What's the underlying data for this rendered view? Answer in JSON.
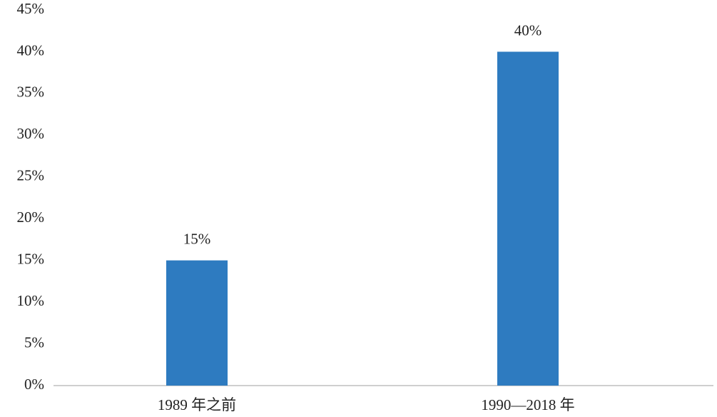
{
  "chart_data": {
    "type": "bar",
    "categories": [
      "1989 年之前",
      "1990—2018 年"
    ],
    "values": [
      15,
      40
    ],
    "value_labels": [
      "15%",
      "40%"
    ],
    "color": "#2e7bc0",
    "ylim": [
      0,
      45
    ],
    "yticks": [
      {
        "value": 0,
        "label": "0%"
      },
      {
        "value": 5,
        "label": "5%"
      },
      {
        "value": 10,
        "label": "10%"
      },
      {
        "value": 15,
        "label": "15%"
      },
      {
        "value": 20,
        "label": "20%"
      },
      {
        "value": 25,
        "label": "25%"
      },
      {
        "value": 30,
        "label": "30%"
      },
      {
        "value": 35,
        "label": "35%"
      },
      {
        "value": 40,
        "label": "40%"
      },
      {
        "value": 45,
        "label": "45%"
      }
    ],
    "grid": false
  }
}
